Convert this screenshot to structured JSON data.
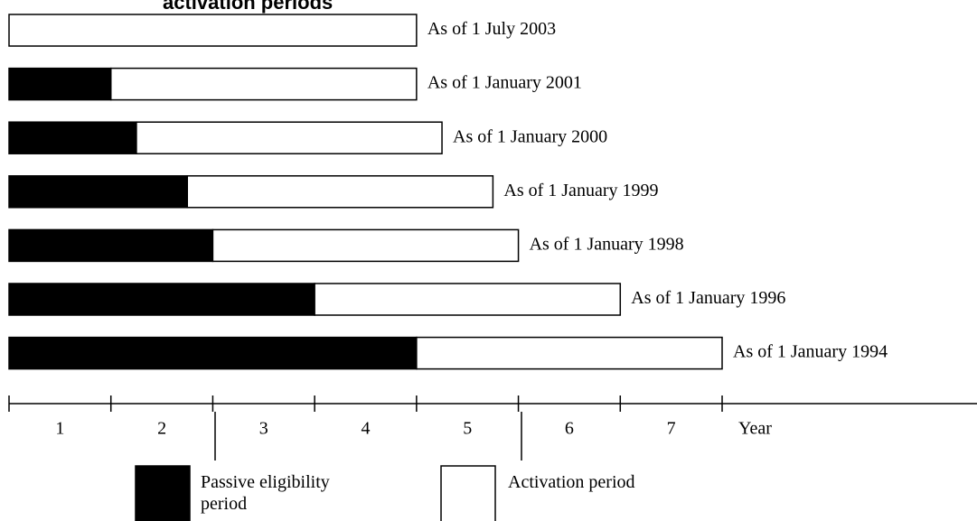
{
  "chart_data": {
    "type": "bar",
    "orientation": "horizontal",
    "stacked": true,
    "title": "activation periods",
    "categories": [
      "As of 1 July 2003",
      "As of 1 January 2001",
      "As of 1 January 2000",
      "As of 1 January 1999",
      "As of 1 January 1998",
      "As of 1 January 1996",
      "As of 1 January 1994"
    ],
    "series": [
      {
        "name": "Passive eligibility period",
        "color": "#000000",
        "values": [
          0,
          1,
          1.25,
          1.75,
          2,
          3,
          4
        ]
      },
      {
        "name": "Activation period",
        "color": "#ffffff",
        "values": [
          4,
          3,
          3,
          3,
          3,
          3,
          3
        ]
      }
    ],
    "xlim": [
      0,
      7
    ],
    "xticks": [
      0,
      1,
      2,
      3,
      4,
      5,
      6,
      7
    ],
    "year_labels": [
      1,
      2,
      3,
      4,
      5,
      6,
      7
    ],
    "x_label": "Year"
  }
}
